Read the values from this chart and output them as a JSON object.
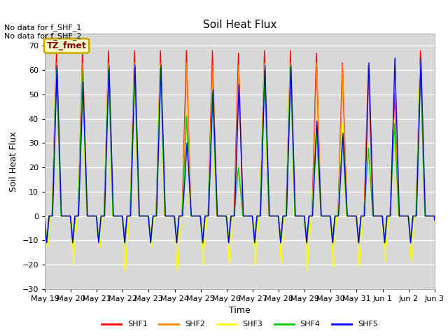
{
  "title": "Soil Heat Flux",
  "ylabel": "Soil Heat Flux",
  "xlabel": "Time",
  "ylim": [
    -30,
    75
  ],
  "yticks": [
    -30,
    -20,
    -10,
    0,
    10,
    20,
    30,
    40,
    50,
    60,
    70
  ],
  "bg_color": "#d8d8d8",
  "fig_color": "#ffffff",
  "annotation_text": "No data for f_SHF_1\nNo data for f_SHF_2",
  "legend_box_text": "TZ_fmet",
  "legend_box_color": "#ffffcc",
  "legend_box_edge": "#ccaa00",
  "series": [
    "SHF1",
    "SHF2",
    "SHF3",
    "SHF4",
    "SHF5"
  ],
  "colors": [
    "#ff0000",
    "#ff8800",
    "#ffff00",
    "#00cc00",
    "#0000ff"
  ],
  "tick_labels": [
    "May 19",
    "May 20",
    "May 21",
    "May 22",
    "May 23",
    "May 24",
    "May 25",
    "May 26",
    "May 27",
    "May 28",
    "May 29",
    "May 30",
    "May 31",
    "Jun 1",
    "Jun 2",
    "Jun 3"
  ]
}
